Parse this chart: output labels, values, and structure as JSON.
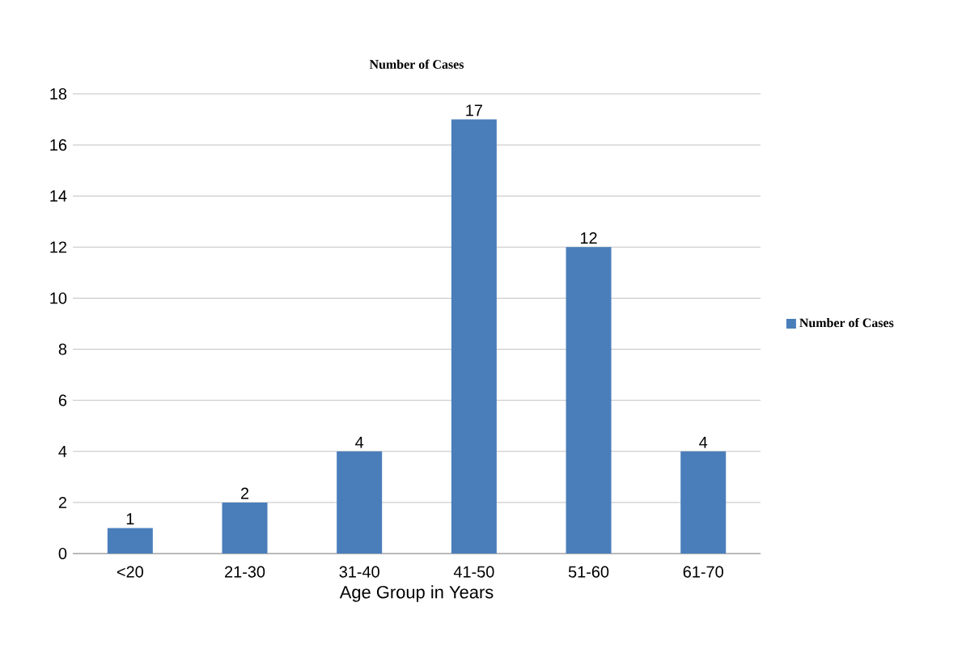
{
  "chart_data": {
    "type": "bar",
    "title": "Number of Cases",
    "xlabel": "Age Group in Years",
    "categories": [
      "<20",
      "21-30",
      "31-40",
      "41-50",
      "51-60",
      "61-70"
    ],
    "series": [
      {
        "name": "Number of Cases",
        "color": "#4a7ebb",
        "values": [
          1,
          2,
          4,
          17,
          12,
          4
        ]
      }
    ],
    "ylim": [
      0,
      18
    ],
    "yticks": [
      0,
      2,
      4,
      6,
      8,
      10,
      12,
      14,
      16,
      18
    ],
    "grid": "y",
    "legend": "right",
    "data_labels": true
  }
}
